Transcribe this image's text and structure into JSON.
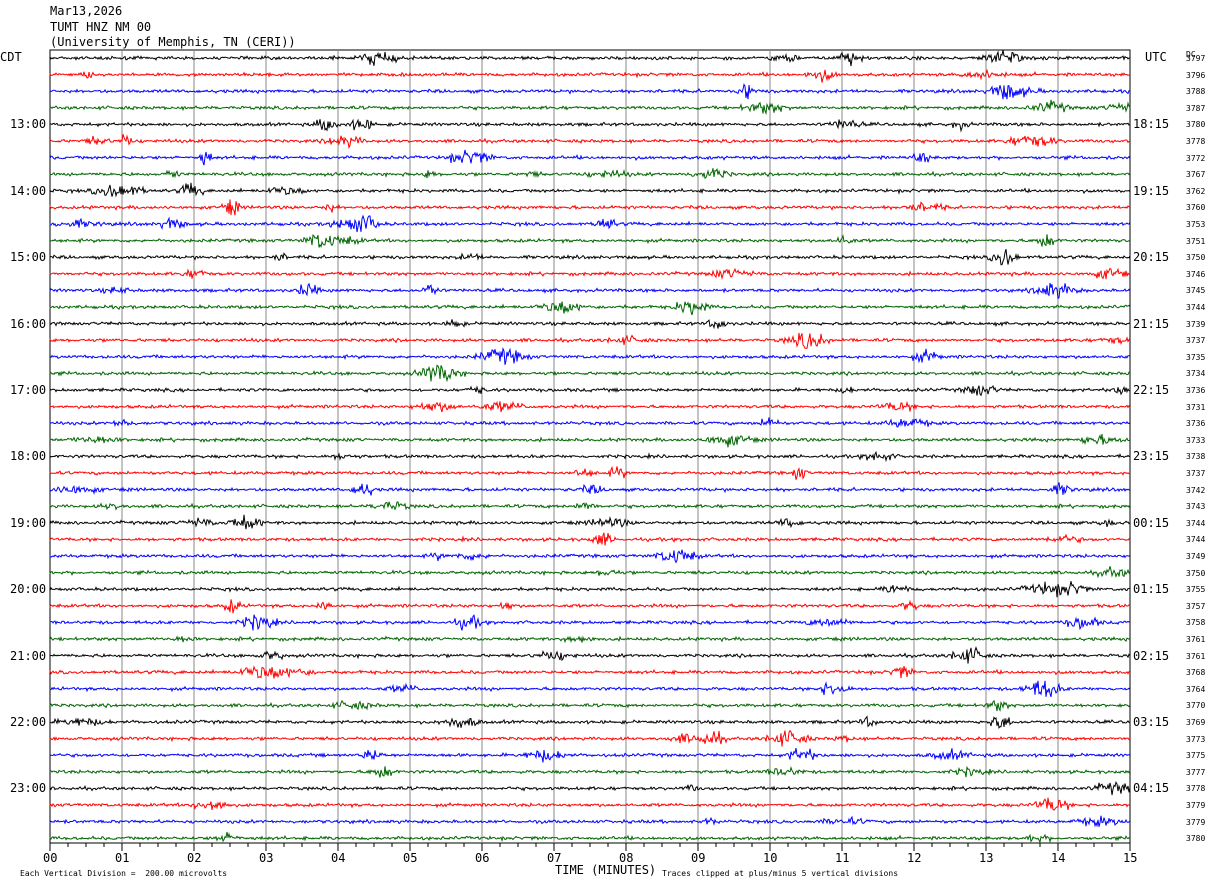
{
  "header": {
    "date": "Mar13,2026",
    "station": "TUMT HNZ NM 00",
    "institution": "(University of Memphis, TN (CERI))"
  },
  "tz": {
    "left": "CDT",
    "right": "UTC",
    "dc": "DC"
  },
  "left_times": [
    "13:00",
    "14:00",
    "15:00",
    "16:00",
    "17:00",
    "18:00",
    "19:00",
    "20:00",
    "21:00",
    "22:00",
    "23:00"
  ],
  "right_times": [
    "18:15",
    "19:15",
    "20:15",
    "21:15",
    "22:15",
    "23:15",
    "00:15",
    "01:15",
    "02:15",
    "03:15",
    "04:15"
  ],
  "dc_values": [
    "3797",
    "3796",
    "3788",
    "3787",
    "3780",
    "3778",
    "3772",
    "3767",
    "3762",
    "3760",
    "3753",
    "3751",
    "3750",
    "3746",
    "3745",
    "3744",
    "3739",
    "3737",
    "3735",
    "3734",
    "3736",
    "3731",
    "3736",
    "3733",
    "3738",
    "3737",
    "3742",
    "3743",
    "3744",
    "3744",
    "3749",
    "3750",
    "3755",
    "3757",
    "3758",
    "3761",
    "3761",
    "3768",
    "3764",
    "3770",
    "3769",
    "3773",
    "3775",
    "3777",
    "3778",
    "3779",
    "3779",
    "3780"
  ],
  "footer": {
    "vertical_division": "Each Vertical Division =  200.00 microvolts",
    "xlabel": "TIME (MINUTES)",
    "clip_note": "Traces clipped at plus/minus 5 vertical divisions"
  },
  "colors": {
    "trace_cycle": [
      "#000000",
      "#ff0000",
      "#0000ff",
      "#006400"
    ],
    "grid": "#888888",
    "frame": "#000000"
  },
  "chart_data": {
    "type": "line",
    "title": "TUMT HNZ NM 00",
    "xlabel": "TIME (MINUTES)",
    "xlim": [
      0,
      15
    ],
    "x_ticks": [
      "00",
      "01",
      "02",
      "03",
      "04",
      "05",
      "06",
      "07",
      "08",
      "09",
      "10",
      "11",
      "12",
      "13",
      "14",
      "15"
    ],
    "rows": 48,
    "minutes_per_row": 15,
    "series_colors_cycle": [
      "black",
      "red",
      "blue",
      "green"
    ],
    "grid": true
  }
}
